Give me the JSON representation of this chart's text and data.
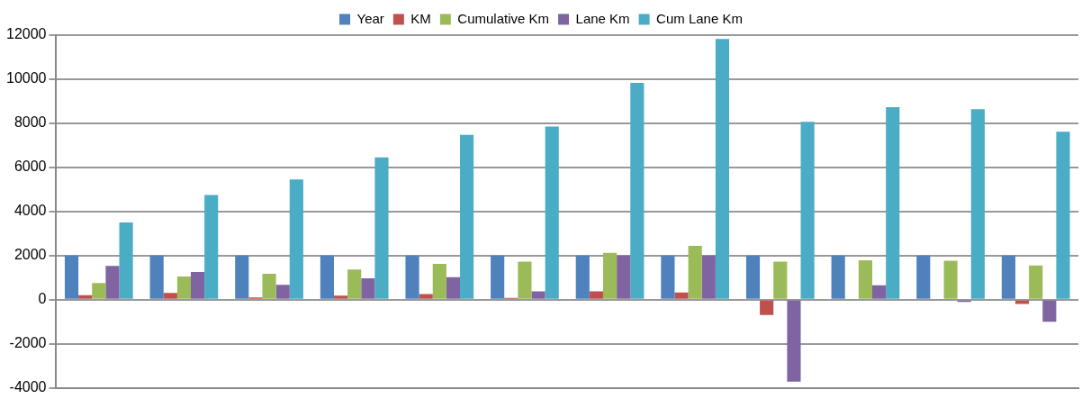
{
  "chart_data": {
    "type": "bar",
    "categories": [
      null,
      null,
      null,
      null,
      null,
      null,
      null,
      null,
      null,
      null,
      null,
      null
    ],
    "series": [
      {
        "name": "Year",
        "color": "#4f81bd",
        "values": [
          2000,
          2000,
          2000,
          2000,
          2000,
          2000,
          2000,
          2000,
          2000,
          2000,
          2000,
          2000
        ]
      },
      {
        "name": "KM",
        "color": "#c0504d",
        "values": [
          200,
          300,
          100,
          180,
          250,
          80,
          380,
          320,
          -700,
          null,
          0,
          -200
        ]
      },
      {
        "name": "Cumulative Km",
        "color": "#9bbb59",
        "values": [
          750,
          1050,
          1170,
          1370,
          1620,
          1720,
          2120,
          2440,
          1720,
          1790,
          1760,
          1550
        ]
      },
      {
        "name": "Lane Km",
        "color": "#8064a2",
        "values": [
          1530,
          1250,
          670,
          970,
          1020,
          380,
          2000,
          2000,
          -3720,
          650,
          -100,
          -1000
        ]
      },
      {
        "name": "Cum Lane Km",
        "color": "#4bacc6",
        "values": [
          3500,
          4750,
          5450,
          6450,
          7470,
          7850,
          9830,
          11830,
          8070,
          8730,
          8640,
          7620
        ]
      }
    ],
    "ylim": [
      -4000,
      12000
    ],
    "yticks": [
      -4000,
      -2000,
      0,
      2000,
      4000,
      6000,
      8000,
      10000,
      12000
    ],
    "grid": "y",
    "legend": "top"
  }
}
